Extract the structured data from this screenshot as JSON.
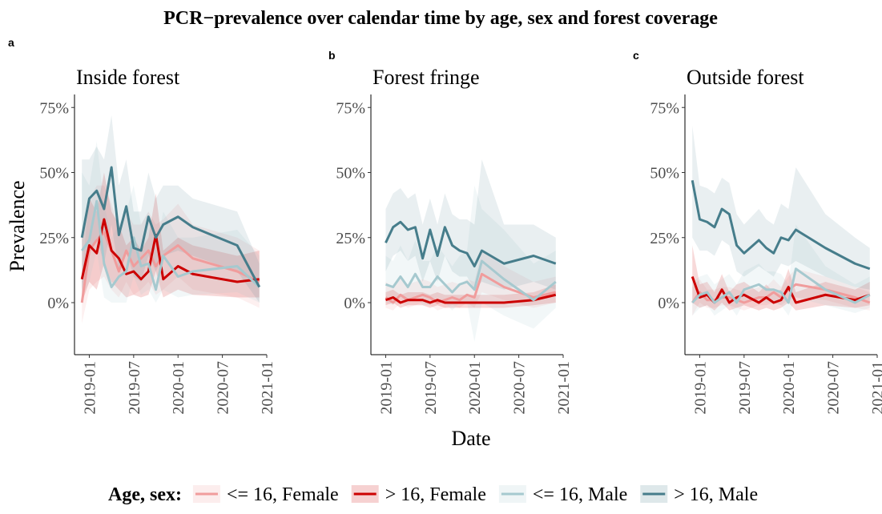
{
  "title": "PCR−prevalence over calendar time by age, sex and forest coverage",
  "legend_title": "Age, sex:",
  "chart_data": [
    {
      "type": "line",
      "panel_label": "a",
      "title": "Inside forest",
      "ylabel": "Prevalence",
      "x": [
        "2018-12",
        "2019-01",
        "2019-02",
        "2019-03",
        "2019-04",
        "2019-05",
        "2019-06",
        "2019-07",
        "2019-08",
        "2019-09",
        "2019-10",
        "2019-11",
        "2020-01",
        "2020-03",
        "2020-09",
        "2020-12"
      ],
      "xlim": [
        "2018-11",
        "2021-01"
      ],
      "xticks": [
        "2019-01",
        "2019-07",
        "2020-01",
        "2020-07",
        "2021-01"
      ],
      "ylim": [
        -20,
        80
      ],
      "yticks": [
        {
          "value": 0,
          "label": "0%"
        },
        {
          "value": 25,
          "label": "25%"
        },
        {
          "value": 50,
          "label": "50%"
        },
        {
          "value": 75,
          "label": "75%"
        }
      ],
      "series": [
        {
          "name": "<= 16, Female",
          "color": "#f09c9c",
          "values": [
            0,
            20,
            24,
            27,
            20,
            12,
            20,
            14,
            17,
            20,
            14,
            18,
            22,
            17,
            12,
            8
          ],
          "lower": [
            -8,
            5,
            8,
            10,
            5,
            2,
            8,
            3,
            5,
            8,
            3,
            5,
            10,
            5,
            2,
            -2
          ],
          "upper": [
            12,
            40,
            45,
            45,
            38,
            28,
            35,
            30,
            30,
            35,
            30,
            32,
            38,
            30,
            25,
            20
          ]
        },
        {
          "name": "> 16, Female",
          "color": "#cc0000",
          "values": [
            9,
            22,
            19,
            32,
            20,
            17,
            11,
            12,
            9,
            12,
            26,
            9,
            14,
            11,
            8,
            9
          ],
          "lower": [
            0,
            8,
            5,
            15,
            8,
            5,
            2,
            3,
            2,
            3,
            12,
            2,
            5,
            3,
            2,
            2
          ],
          "upper": [
            25,
            40,
            35,
            50,
            35,
            30,
            22,
            25,
            20,
            25,
            42,
            20,
            25,
            22,
            18,
            20
          ]
        },
        {
          "name": "<= 16, Male",
          "color": "#a6c9cf",
          "values": [
            20,
            24,
            39,
            15,
            6,
            10,
            12,
            25,
            14,
            15,
            5,
            18,
            10,
            12,
            14,
            6
          ],
          "lower": [
            2,
            8,
            20,
            2,
            0,
            0,
            0,
            10,
            3,
            5,
            0,
            5,
            2,
            3,
            4,
            0
          ],
          "upper": [
            50,
            45,
            62,
            38,
            25,
            30,
            35,
            45,
            30,
            35,
            20,
            35,
            25,
            25,
            28,
            18
          ]
        },
        {
          "name": "> 16, Male",
          "color": "#467d8b",
          "values": [
            25,
            40,
            43,
            36,
            52,
            26,
            37,
            21,
            20,
            33,
            25,
            30,
            33,
            29,
            22,
            6
          ],
          "lower": [
            5,
            20,
            25,
            15,
            30,
            12,
            20,
            10,
            8,
            18,
            12,
            18,
            20,
            18,
            12,
            0
          ],
          "upper": [
            55,
            55,
            60,
            55,
            72,
            45,
            55,
            35,
            35,
            50,
            40,
            45,
            45,
            40,
            35,
            15
          ]
        }
      ]
    },
    {
      "type": "line",
      "panel_label": "b",
      "title": "Forest fringe",
      "xlabel": "Date",
      "x": [
        "2019-01",
        "2019-02",
        "2019-03",
        "2019-04",
        "2019-05",
        "2019-06",
        "2019-07",
        "2019-08",
        "2019-09",
        "2019-10",
        "2019-11",
        "2019-12",
        "2020-01",
        "2020-02",
        "2020-05",
        "2020-09",
        "2020-12"
      ],
      "xlim": [
        "2018-11",
        "2021-01"
      ],
      "xticks": [
        "2019-01",
        "2019-07",
        "2020-01",
        "2020-07",
        "2021-01"
      ],
      "ylim": [
        -20,
        80
      ],
      "yticks": [
        {
          "value": 0,
          "label": "0%"
        },
        {
          "value": 25,
          "label": "25%"
        },
        {
          "value": 50,
          "label": "50%"
        },
        {
          "value": 75,
          "label": "75%"
        }
      ],
      "series": [
        {
          "name": "<= 16, Female",
          "color": "#f09c9c",
          "values": [
            2,
            0,
            3,
            1,
            2,
            3,
            2,
            0,
            1,
            2,
            1,
            3,
            2,
            11,
            6,
            2,
            4
          ],
          "lower": [
            -2,
            -3,
            0,
            -2,
            -1,
            0,
            -1,
            -3,
            -2,
            -1,
            -2,
            0,
            -2,
            4,
            1,
            -2,
            0
          ],
          "upper": [
            8,
            6,
            9,
            7,
            8,
            9,
            8,
            6,
            7,
            8,
            7,
            9,
            8,
            20,
            14,
            8,
            10
          ]
        },
        {
          "name": "> 16, Female",
          "color": "#cc0000",
          "values": [
            1,
            2,
            0,
            1,
            1,
            1,
            0,
            1,
            0,
            0,
            0,
            0,
            0,
            0,
            0,
            1,
            3
          ],
          "lower": [
            -1,
            0,
            -2,
            -1,
            -1,
            -1,
            -2,
            -1,
            -2,
            -2,
            -2,
            -2,
            -2,
            -2,
            -2,
            -1,
            0
          ],
          "upper": [
            4,
            5,
            3,
            4,
            4,
            4,
            3,
            4,
            3,
            3,
            3,
            3,
            3,
            3,
            3,
            4,
            7
          ]
        },
        {
          "name": "<= 16, Male",
          "color": "#a6c9cf",
          "values": [
            7,
            6,
            10,
            6,
            11,
            6,
            6,
            10,
            7,
            4,
            7,
            8,
            5,
            16,
            9,
            1,
            8
          ],
          "lower": [
            0,
            -1,
            2,
            -1,
            3,
            -1,
            -1,
            2,
            0,
            -3,
            0,
            0,
            -15,
            0,
            -5,
            -10,
            -2
          ],
          "upper": [
            18,
            16,
            22,
            16,
            24,
            16,
            16,
            22,
            18,
            14,
            18,
            20,
            45,
            36,
            28,
            15,
            20
          ]
        },
        {
          "name": "> 16, Male",
          "color": "#467d8b",
          "values": [
            23,
            29,
            31,
            28,
            29,
            17,
            28,
            18,
            29,
            22,
            20,
            19,
            14,
            20,
            15,
            18,
            15
          ],
          "lower": [
            12,
            18,
            20,
            16,
            18,
            8,
            16,
            8,
            18,
            12,
            10,
            10,
            5,
            8,
            5,
            8,
            5
          ],
          "upper": [
            36,
            42,
            44,
            40,
            42,
            30,
            40,
            30,
            42,
            34,
            32,
            32,
            30,
            55,
            30,
            30,
            25
          ]
        }
      ]
    },
    {
      "type": "line",
      "panel_label": "c",
      "title": "Outside forest",
      "x": [
        "2018-12",
        "2019-01",
        "2019-02",
        "2019-03",
        "2019-04",
        "2019-05",
        "2019-06",
        "2019-07",
        "2019-09",
        "2019-10",
        "2019-11",
        "2019-12",
        "2020-01",
        "2020-02",
        "2020-06",
        "2020-10",
        "2020-12"
      ],
      "xlim": [
        "2018-11",
        "2021-01"
      ],
      "xticks": [
        "2019-01",
        "2019-07",
        "2020-01",
        "2020-07",
        "2021-01"
      ],
      "ylim": [
        -20,
        80
      ],
      "yticks": [
        {
          "value": 0,
          "label": "0%"
        },
        {
          "value": 25,
          "label": "25%"
        },
        {
          "value": 50,
          "label": "50%"
        },
        {
          "value": 75,
          "label": "75%"
        }
      ],
      "series": [
        {
          "name": "<= 16, Female",
          "color": "#f09c9c",
          "values": [
            0,
            4,
            1,
            1,
            2,
            2,
            1,
            0,
            2,
            2,
            4,
            2,
            5,
            7,
            5,
            2,
            0
          ],
          "lower": [
            -5,
            0,
            -2,
            -2,
            -1,
            -1,
            -2,
            -3,
            -1,
            -1,
            0,
            -1,
            1,
            2,
            1,
            -2,
            -3
          ],
          "upper": [
            6,
            9,
            5,
            5,
            6,
            6,
            5,
            4,
            6,
            6,
            9,
            6,
            10,
            13,
            10,
            6,
            4
          ]
        },
        {
          "name": "> 16, Female",
          "color": "#cc0000",
          "values": [
            10,
            2,
            3,
            0,
            5,
            0,
            2,
            3,
            0,
            2,
            0,
            1,
            6,
            0,
            3,
            1,
            3
          ],
          "lower": [
            0,
            -2,
            -1,
            -3,
            0,
            -3,
            -2,
            -1,
            -3,
            -2,
            -3,
            -2,
            0,
            -3,
            -1,
            -2,
            -1
          ],
          "upper": [
            22,
            7,
            8,
            4,
            11,
            4,
            7,
            8,
            4,
            7,
            4,
            5,
            13,
            4,
            8,
            5,
            8
          ]
        },
        {
          "name": "<= 16, Male",
          "color": "#a6c9cf",
          "values": [
            0,
            3,
            4,
            0,
            2,
            4,
            0,
            5,
            7,
            5,
            5,
            4,
            0,
            13,
            5,
            0,
            3
          ],
          "lower": [
            -5,
            -2,
            -1,
            -5,
            -3,
            -1,
            -5,
            0,
            1,
            0,
            0,
            -1,
            -5,
            2,
            -1,
            -4,
            -2
          ],
          "upper": [
            8,
            10,
            11,
            7,
            9,
            11,
            7,
            12,
            15,
            12,
            12,
            11,
            7,
            30,
            14,
            7,
            10
          ]
        },
        {
          "name": "> 16, Male",
          "color": "#467d8b",
          "values": [
            47,
            32,
            31,
            29,
            36,
            34,
            22,
            19,
            24,
            21,
            19,
            25,
            24,
            28,
            21,
            15,
            13
          ],
          "lower": [
            25,
            20,
            20,
            18,
            24,
            22,
            12,
            10,
            14,
            12,
            10,
            15,
            14,
            16,
            10,
            6,
            5
          ],
          "upper": [
            68,
            45,
            44,
            42,
            48,
            46,
            34,
            30,
            36,
            32,
            30,
            38,
            36,
            52,
            34,
            25,
            21
          ]
        }
      ]
    }
  ]
}
